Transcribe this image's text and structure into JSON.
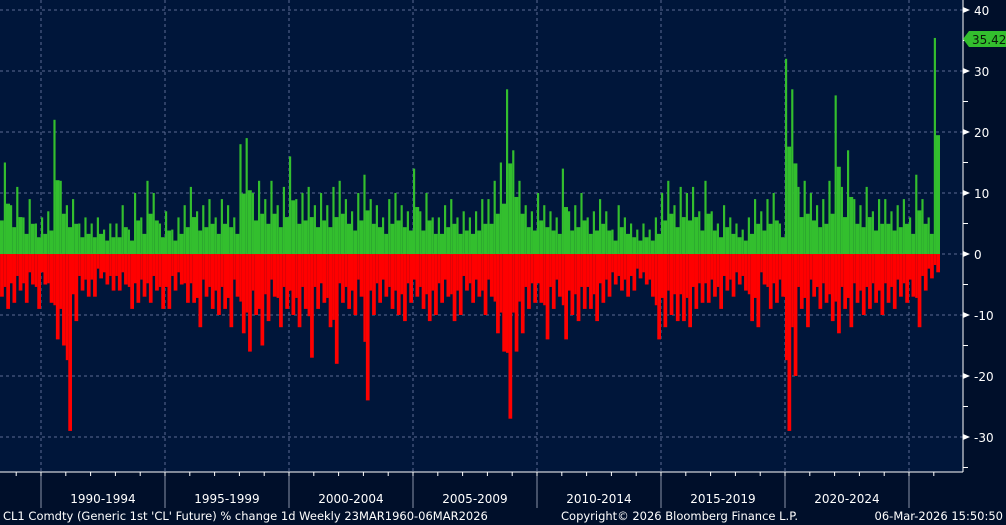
{
  "chart_data": {
    "type": "bar",
    "title": "",
    "xlabel": "",
    "ylabel": "",
    "ylim": [
      -36,
      41
    ],
    "y_ticks": [
      "40",
      "30",
      "20",
      "10",
      "0",
      "-10",
      "-20",
      "-30"
    ],
    "x_tick_labels": [
      "1990-1994",
      "1995-1999",
      "2000-2004",
      "2005-2009",
      "2010-2014",
      "2015-2019",
      "2020-2024"
    ],
    "grid": true,
    "y_axis_side": "right",
    "colors": {
      "positive": "#33bf2e",
      "negative": "#ff0000",
      "background": "#00163a",
      "grid": "#5b6a92",
      "last_value_box": "#33bf2e"
    },
    "last_value": "35.42",
    "series_note_quarterly_extremes": "quarterly max weekly gain / max weekly loss (%)",
    "series": [
      {
        "year": 1988,
        "quarters": [
          2,
          3,
          4
        ],
        "max_gain": [
          10,
          15,
          8
        ],
        "max_loss": [
          -7,
          -9,
          -8
        ]
      },
      {
        "year": 1989,
        "quarters": [
          1,
          2,
          3,
          4
        ],
        "max_gain": [
          11,
          6,
          9,
          5
        ],
        "max_loss": [
          -6,
          -8,
          -5,
          -9
        ]
      },
      {
        "year": 1990,
        "quarters": [
          1,
          2,
          3,
          4
        ],
        "max_gain": [
          6,
          7,
          22,
          12
        ],
        "max_loss": [
          -5,
          -8,
          -14,
          -15
        ]
      },
      {
        "year": 1991,
        "quarters": [
          1,
          2,
          3,
          4
        ],
        "max_gain": [
          8,
          9,
          5,
          6
        ],
        "max_loss": [
          -29,
          -11,
          -6,
          -7
        ]
      },
      {
        "year": 1992,
        "quarters": [
          1,
          2,
          3,
          4
        ],
        "max_gain": [
          5,
          6,
          4,
          5
        ],
        "max_loss": [
          -7,
          -4,
          -5,
          -6
        ]
      },
      {
        "year": 1993,
        "quarters": [
          1,
          2,
          3,
          4
        ],
        "max_gain": [
          5,
          8,
          4,
          10
        ],
        "max_loss": [
          -6,
          -5,
          -9,
          -8
        ]
      },
      {
        "year": 1994,
        "quarters": [
          1,
          2,
          3,
          4
        ],
        "max_gain": [
          6,
          12,
          10,
          5
        ],
        "max_loss": [
          -7,
          -8,
          -6,
          -9
        ]
      },
      {
        "year": 1995,
        "quarters": [
          1,
          2,
          3,
          4
        ],
        "max_gain": [
          7,
          4,
          6,
          8
        ],
        "max_loss": [
          -9,
          -6,
          -5,
          -8
        ]
      },
      {
        "year": 1996,
        "quarters": [
          1,
          2,
          3,
          4
        ],
        "max_gain": [
          11,
          7,
          8,
          9
        ],
        "max_loss": [
          -8,
          -12,
          -7,
          -9
        ]
      },
      {
        "year": 1997,
        "quarters": [
          1,
          2,
          3,
          4
        ],
        "max_gain": [
          6,
          9,
          8,
          6
        ],
        "max_loss": [
          -10,
          -9,
          -12,
          -7
        ]
      },
      {
        "year": 1998,
        "quarters": [
          1,
          2,
          3,
          4
        ],
        "max_gain": [
          18,
          19,
          10,
          12
        ],
        "max_loss": [
          -13,
          -16,
          -10,
          -15
        ]
      },
      {
        "year": 1999,
        "quarters": [
          1,
          2,
          3,
          4
        ],
        "max_gain": [
          9,
          12,
          8,
          11
        ],
        "max_loss": [
          -11,
          -7,
          -12,
          -9
        ]
      },
      {
        "year": 2000,
        "quarters": [
          1,
          2,
          3,
          4
        ],
        "max_gain": [
          16,
          9,
          10,
          11
        ],
        "max_loss": [
          -10,
          -12,
          -9,
          -17
        ]
      },
      {
        "year": 2001,
        "quarters": [
          1,
          2,
          3,
          4
        ],
        "max_gain": [
          8,
          10,
          8,
          11
        ],
        "max_loss": [
          -9,
          -8,
          -12,
          -18
        ]
      },
      {
        "year": 2002,
        "quarters": [
          1,
          2,
          3,
          4
        ],
        "max_gain": [
          12,
          9,
          7,
          10
        ],
        "max_loss": [
          -8,
          -9,
          -10,
          -7
        ]
      },
      {
        "year": 2003,
        "quarters": [
          1,
          2,
          3,
          4
        ],
        "max_gain": [
          13,
          9,
          8,
          6
        ],
        "max_loss": [
          -24,
          -10,
          -8,
          -7
        ]
      },
      {
        "year": 2004,
        "quarters": [
          1,
          2,
          3,
          4
        ],
        "max_gain": [
          9,
          10,
          8,
          7
        ],
        "max_loss": [
          -9,
          -10,
          -11,
          -8
        ]
      },
      {
        "year": 2005,
        "quarters": [
          1,
          2,
          3,
          4
        ],
        "max_gain": [
          14,
          7,
          10,
          6
        ],
        "max_loss": [
          -7,
          -9,
          -11,
          -10
        ]
      },
      {
        "year": 2006,
        "quarters": [
          1,
          2,
          3,
          4
        ],
        "max_gain": [
          6,
          8,
          9,
          6
        ],
        "max_loss": [
          -8,
          -7,
          -11,
          -10
        ]
      },
      {
        "year": 2007,
        "quarters": [
          1,
          2,
          3,
          4
        ],
        "max_gain": [
          7,
          6,
          7,
          9
        ],
        "max_loss": [
          -6,
          -8,
          -7,
          -10
        ]
      },
      {
        "year": 2008,
        "quarters": [
          1,
          2,
          3,
          4
        ],
        "max_gain": [
          9,
          12,
          15,
          27
        ],
        "max_loss": [
          -7,
          -13,
          -16,
          -27
        ]
      },
      {
        "year": 2009,
        "quarters": [
          1,
          2,
          3,
          4
        ],
        "max_gain": [
          17,
          12,
          8,
          7
        ],
        "max_loss": [
          -16,
          -13,
          -9,
          -8
        ]
      },
      {
        "year": 2010,
        "quarters": [
          1,
          2,
          3,
          4
        ],
        "max_gain": [
          10,
          8,
          7,
          6
        ],
        "max_loss": [
          -8,
          -14,
          -9,
          -7
        ]
      },
      {
        "year": 2011,
        "quarters": [
          1,
          2,
          3,
          4
        ],
        "max_gain": [
          14,
          7,
          8,
          10
        ],
        "max_loss": [
          -14,
          -10,
          -11,
          -9
        ]
      },
      {
        "year": 2012,
        "quarters": [
          1,
          2,
          3,
          4
        ],
        "max_gain": [
          6,
          7,
          9,
          7
        ],
        "max_loss": [
          -9,
          -11,
          -8,
          -7
        ]
      },
      {
        "year": 2013,
        "quarters": [
          1,
          2,
          3,
          4
        ],
        "max_gain": [
          4,
          8,
          6,
          5
        ],
        "max_loss": [
          -5,
          -6,
          -7,
          -6
        ]
      },
      {
        "year": 2014,
        "quarters": [
          1,
          2,
          3,
          4
        ],
        "max_gain": [
          4,
          5,
          4,
          6
        ],
        "max_loss": [
          -4,
          -5,
          -7,
          -14
        ]
      },
      {
        "year": 2015,
        "quarters": [
          1,
          2,
          3,
          4
        ],
        "max_gain": [
          10,
          12,
          8,
          11
        ],
        "max_loss": [
          -12,
          -10,
          -11,
          -11
        ]
      },
      {
        "year": 2016,
        "quarters": [
          1,
          2,
          3,
          4
        ],
        "max_gain": [
          10,
          11,
          7,
          12
        ],
        "max_loss": [
          -12,
          -9,
          -8,
          -8
        ]
      },
      {
        "year": 2017,
        "quarters": [
          1,
          2,
          3,
          4
        ],
        "max_gain": [
          7,
          5,
          8,
          6
        ],
        "max_loss": [
          -7,
          -9,
          -6,
          -7
        ]
      },
      {
        "year": 2018,
        "quarters": [
          1,
          2,
          3,
          4
        ],
        "max_gain": [
          5,
          4,
          6,
          9
        ],
        "max_loss": [
          -5,
          -6,
          -11,
          -12
        ]
      },
      {
        "year": 2019,
        "quarters": [
          1,
          2,
          3,
          4
        ],
        "max_gain": [
          7,
          9,
          10,
          5
        ],
        "max_loss": [
          -5,
          -9,
          -8,
          -7
        ]
      },
      {
        "year": 2020,
        "quarters": [
          1,
          2,
          3,
          4
        ],
        "max_gain": [
          32,
          27,
          11,
          12
        ],
        "max_loss": [
          -29,
          -20,
          -9,
          -12
        ]
      },
      {
        "year": 2021,
        "quarters": [
          1,
          2,
          3,
          4
        ],
        "max_gain": [
          10,
          8,
          9,
          12
        ],
        "max_loss": [
          -7,
          -9,
          -8,
          -11
        ]
      },
      {
        "year": 2022,
        "quarters": [
          1,
          2,
          3,
          4
        ],
        "max_gain": [
          26,
          11,
          17,
          9
        ],
        "max_loss": [
          -13,
          -9,
          -12,
          -8
        ]
      },
      {
        "year": 2023,
        "quarters": [
          1,
          2,
          3,
          4
        ],
        "max_gain": [
          8,
          11,
          7,
          9
        ],
        "max_loss": [
          -10,
          -9,
          -8,
          -10
        ]
      },
      {
        "year": 2024,
        "quarters": [
          1,
          2,
          3,
          4
        ],
        "max_gain": [
          9,
          7,
          8,
          9
        ],
        "max_loss": [
          -8,
          -9,
          -7,
          -8
        ]
      },
      {
        "year": 2025,
        "quarters": [
          1,
          2,
          3,
          4
        ],
        "max_gain": [
          6,
          13,
          9,
          6
        ],
        "max_loss": [
          -7,
          -12,
          -6,
          -4
        ]
      },
      {
        "year": 2026,
        "quarters": [
          1
        ],
        "max_gain": [
          35.42
        ],
        "max_loss": [
          -3
        ]
      }
    ]
  },
  "footer": {
    "description": "CL1 Comdty (Generic 1st 'CL' Future) % change 1d Weekly 23MAR1960-06MAR2026",
    "copyright": "Copyright© 2026 Bloomberg Finance L.P.",
    "timestamp": "06-Mar-2026 15:50:50"
  }
}
